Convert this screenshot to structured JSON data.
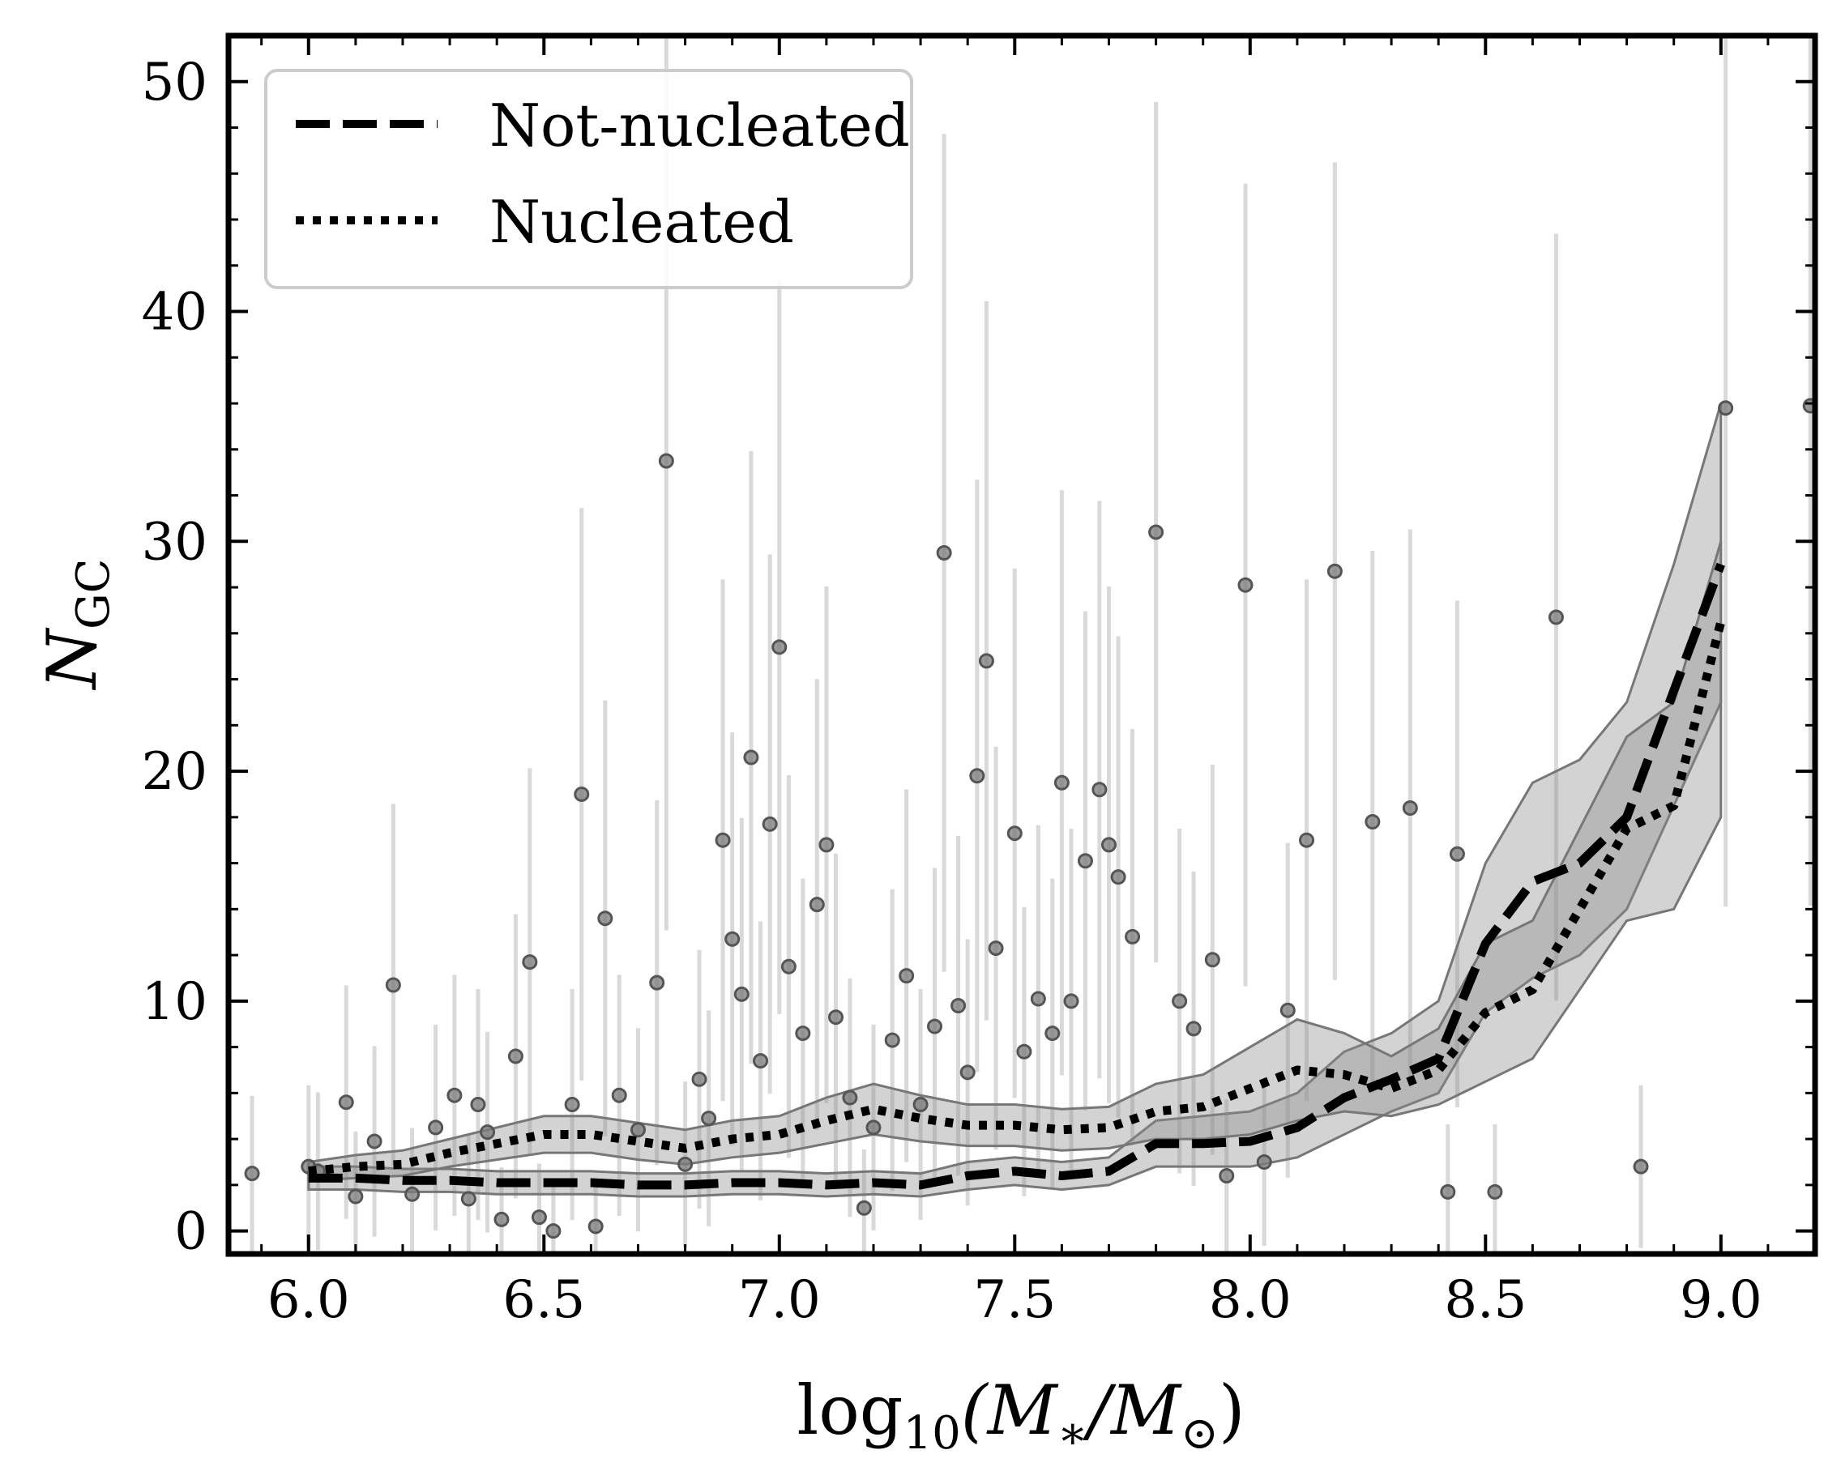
{
  "chart_data": {
    "type": "scatter",
    "title": "",
    "xlabel": {
      "pre": "log",
      "sub": "10",
      "post": "(M",
      "star": "∗",
      "slash": "/M",
      "sun": "⊙",
      "close": ")"
    },
    "ylabel": {
      "main": "N",
      "sub": "GC"
    },
    "xlim": [
      5.83,
      9.2
    ],
    "ylim": [
      -1,
      52
    ],
    "xticks": [
      6.0,
      6.5,
      7.0,
      7.5,
      8.0,
      8.5,
      9.0
    ],
    "xtick_labels": [
      "6.0",
      "6.5",
      "7.0",
      "7.5",
      "8.0",
      "8.5",
      "9.0"
    ],
    "yticks": [
      0,
      10,
      20,
      30,
      40,
      50
    ],
    "ytick_labels": [
      "0",
      "10",
      "20",
      "30",
      "40",
      "50"
    ],
    "grid": false,
    "legend_position": "top-left",
    "legend": [
      {
        "label": "Not-nucleated",
        "style": "dashed"
      },
      {
        "label": "Nucleated",
        "style": "dotted"
      }
    ],
    "colors": {
      "line": "#000000",
      "band": "#8c8c8c",
      "points": "#7a7a7a",
      "errorbars": "#d9d9d9"
    },
    "series": [
      {
        "name": "Not-nucleated",
        "style": "dashed",
        "x": [
          6.0,
          6.1,
          6.2,
          6.3,
          6.4,
          6.5,
          6.6,
          6.7,
          6.8,
          6.9,
          7.0,
          7.1,
          7.2,
          7.3,
          7.4,
          7.5,
          7.6,
          7.7,
          7.8,
          7.9,
          8.0,
          8.1,
          8.2,
          8.3,
          8.4,
          8.5,
          8.6,
          8.7,
          8.8,
          8.9,
          9.0
        ],
        "y": [
          2.3,
          2.3,
          2.2,
          2.2,
          2.1,
          2.1,
          2.1,
          2.0,
          2.0,
          2.1,
          2.1,
          2.0,
          2.1,
          2.0,
          2.4,
          2.6,
          2.4,
          2.6,
          3.8,
          3.8,
          3.9,
          4.5,
          5.8,
          6.6,
          7.5,
          12.5,
          15.2,
          16.0,
          18.0,
          23.5,
          29.0
        ],
        "lower": [
          1.8,
          1.8,
          1.7,
          1.7,
          1.6,
          1.6,
          1.6,
          1.5,
          1.5,
          1.6,
          1.6,
          1.5,
          1.6,
          1.5,
          1.8,
          2.0,
          1.8,
          2.0,
          2.8,
          2.8,
          2.8,
          3.2,
          4.2,
          5.2,
          6.0,
          9.5,
          11.0,
          12.0,
          14.0,
          18.5,
          23.0
        ],
        "upper": [
          2.8,
          2.8,
          2.7,
          2.7,
          2.6,
          2.6,
          2.6,
          2.5,
          2.5,
          2.6,
          2.6,
          2.5,
          2.6,
          2.5,
          3.0,
          3.2,
          3.0,
          3.2,
          4.8,
          5.0,
          5.2,
          6.0,
          7.8,
          8.6,
          10.0,
          16.0,
          19.5,
          20.5,
          23.0,
          29.0,
          36.0
        ]
      },
      {
        "name": "Nucleated",
        "style": "dotted",
        "x": [
          6.0,
          6.1,
          6.2,
          6.3,
          6.4,
          6.5,
          6.6,
          6.7,
          6.8,
          6.9,
          7.0,
          7.1,
          7.2,
          7.3,
          7.4,
          7.5,
          7.6,
          7.7,
          7.8,
          7.9,
          8.0,
          8.1,
          8.2,
          8.3,
          8.4,
          8.5,
          8.6,
          8.7,
          8.8,
          8.9,
          9.0
        ],
        "y": [
          2.6,
          2.8,
          2.9,
          3.4,
          3.8,
          4.2,
          4.2,
          3.9,
          3.6,
          4.0,
          4.2,
          4.8,
          5.3,
          4.9,
          4.6,
          4.6,
          4.4,
          4.5,
          5.2,
          5.4,
          6.2,
          7.0,
          6.8,
          6.2,
          7.0,
          9.5,
          10.5,
          14.0,
          17.5,
          18.5,
          26.5
        ],
        "lower": [
          2.2,
          2.3,
          2.4,
          2.8,
          3.1,
          3.4,
          3.4,
          3.1,
          2.9,
          3.2,
          3.4,
          3.8,
          4.2,
          3.9,
          3.7,
          3.7,
          3.5,
          3.6,
          4.0,
          4.0,
          4.2,
          4.8,
          5.2,
          5.0,
          5.5,
          6.5,
          7.5,
          10.5,
          13.5,
          14.0,
          18.0
        ],
        "upper": [
          3.0,
          3.3,
          3.5,
          4.0,
          4.5,
          5.0,
          5.0,
          4.7,
          4.4,
          4.8,
          5.0,
          5.8,
          6.4,
          5.9,
          5.5,
          5.5,
          5.3,
          5.4,
          6.4,
          6.8,
          8.0,
          9.2,
          8.6,
          7.6,
          8.8,
          12.5,
          13.5,
          17.5,
          21.5,
          23.0,
          30.0
        ]
      }
    ],
    "points": {
      "x": [
        5.88,
        6.0,
        6.02,
        6.08,
        6.1,
        6.14,
        6.18,
        6.22,
        6.27,
        6.31,
        6.34,
        6.36,
        6.38,
        6.41,
        6.44,
        6.47,
        6.49,
        6.52,
        6.56,
        6.58,
        6.61,
        6.63,
        6.66,
        6.7,
        6.74,
        6.76,
        6.8,
        6.83,
        6.85,
        6.88,
        6.9,
        6.92,
        6.94,
        6.96,
        6.98,
        7.0,
        7.02,
        7.05,
        7.08,
        7.1,
        7.12,
        7.15,
        7.18,
        7.2,
        7.24,
        7.27,
        7.3,
        7.33,
        7.35,
        7.38,
        7.4,
        7.42,
        7.44,
        7.46,
        7.5,
        7.52,
        7.55,
        7.58,
        7.6,
        7.62,
        7.65,
        7.68,
        7.7,
        7.72,
        7.75,
        7.8,
        7.85,
        7.88,
        7.92,
        7.95,
        7.99,
        8.03,
        8.08,
        8.12,
        8.18,
        8.26,
        8.34,
        8.42,
        8.44,
        8.52,
        8.65,
        8.83,
        9.01,
        9.19
      ],
      "y": [
        2.5,
        2.8,
        2.6,
        5.6,
        1.5,
        3.9,
        10.7,
        1.6,
        4.5,
        5.9,
        1.4,
        5.5,
        4.3,
        0.5,
        7.6,
        11.7,
        0.6,
        0.0,
        5.5,
        19.0,
        0.2,
        13.6,
        5.9,
        4.4,
        10.8,
        33.5,
        2.9,
        6.6,
        4.9,
        17.0,
        12.7,
        10.3,
        20.6,
        7.4,
        17.7,
        25.4,
        11.5,
        8.6,
        14.2,
        16.8,
        9.3,
        5.8,
        1.0,
        4.5,
        8.3,
        11.1,
        5.5,
        8.9,
        29.5,
        9.8,
        6.9,
        19.8,
        24.8,
        12.3,
        17.3,
        7.8,
        10.1,
        8.6,
        19.5,
        10.0,
        16.1,
        19.2,
        16.8,
        15.4,
        12.8,
        30.4,
        10.0,
        8.8,
        11.8,
        2.4,
        28.1,
        3.0,
        9.6,
        17.0,
        28.7,
        17.8,
        18.4,
        1.7,
        16.4,
        1.7,
        26.7,
        2.8,
        35.8,
        35.9
      ]
    }
  }
}
